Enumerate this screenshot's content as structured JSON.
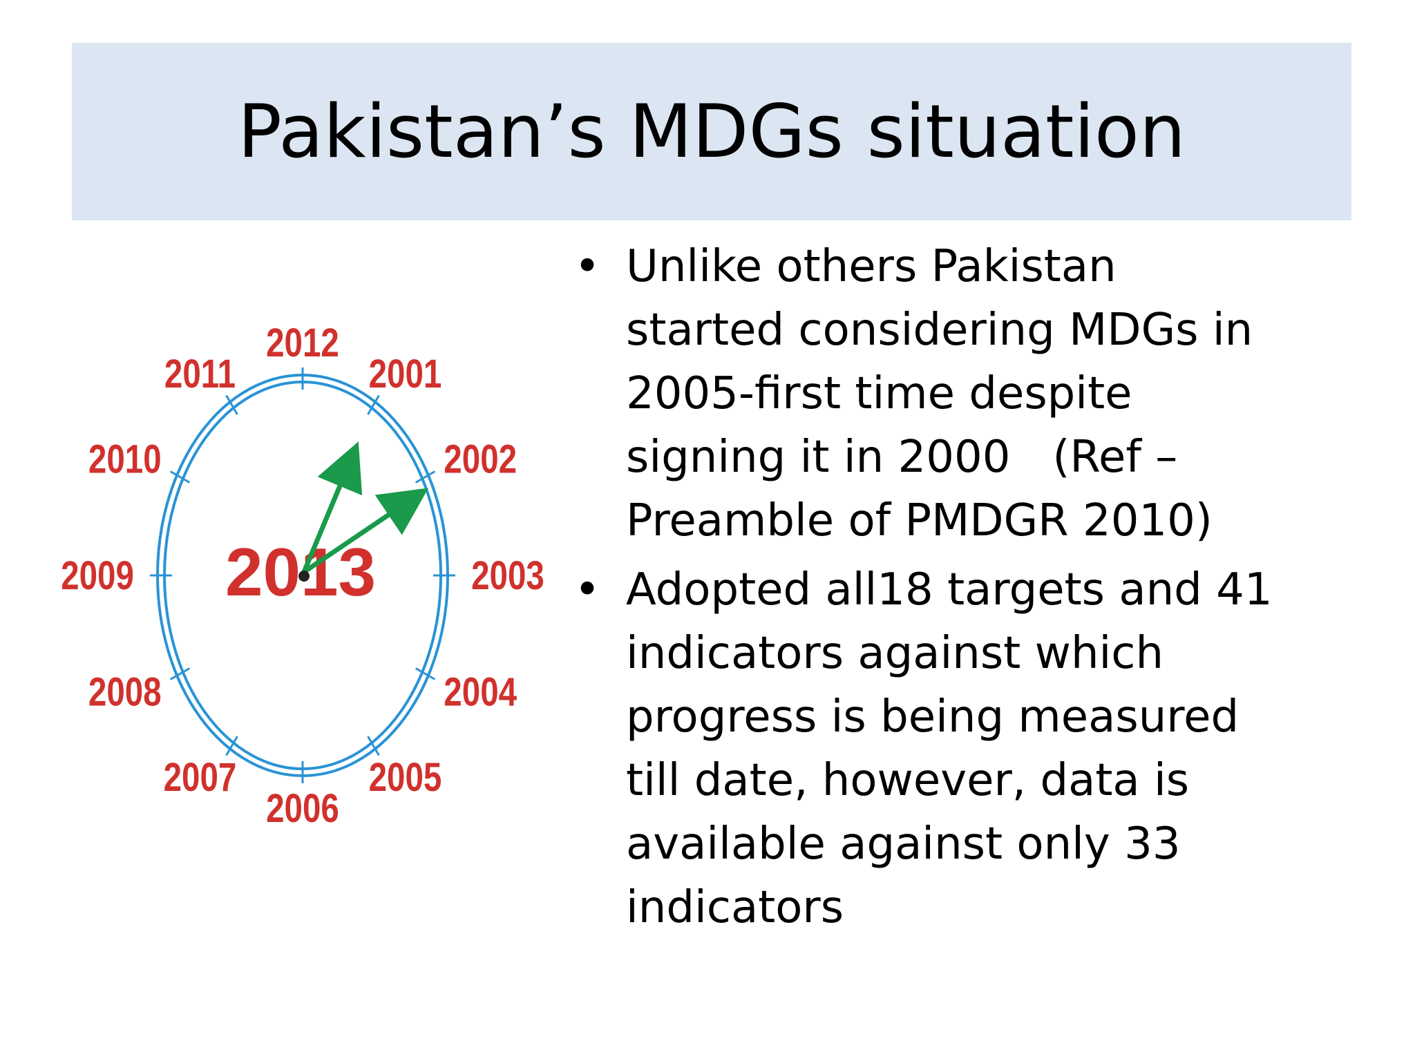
{
  "slide": {
    "title": "Pakistan’s MDGs situation",
    "colors": {
      "title_band": "#dce6f2",
      "year_text": "#d0312d",
      "clock_ring": "#2a93d5",
      "hands": "#1a9a4a"
    }
  },
  "clock": {
    "center_year": "2013",
    "years": [
      "2012",
      "2001",
      "2002",
      "2003",
      "2004",
      "2005",
      "2006",
      "2007",
      "2008",
      "2009",
      "2010",
      "2011"
    ]
  },
  "bullets": [
    {
      "symbol": "•",
      "lines": [
        "Unlike others Pakistan",
        "started considering MDGs in",
        "2005-first time despite",
        "signing it in 2000   (Ref –",
        "Preamble of PMDGR 2010)"
      ]
    },
    {
      "symbol": "•",
      "lines": [
        "Adopted all18 targets and 41",
        "indicators against which",
        "progress is being measured",
        "till date, however, data is",
        "available against only 33",
        "indicators"
      ]
    }
  ]
}
